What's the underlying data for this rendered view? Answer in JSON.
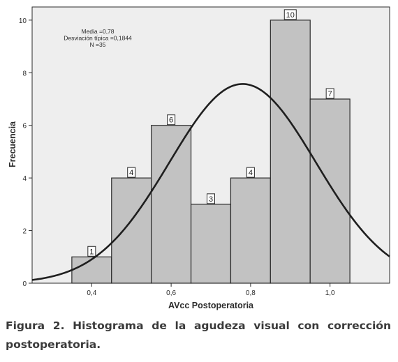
{
  "chart_data": {
    "type": "bar",
    "subtype": "histogram",
    "xlabel": "AVcc Postoperatoria",
    "ylabel": "Frecuencia",
    "xlim": [
      0.25,
      1.15
    ],
    "ylim": [
      0,
      10.5
    ],
    "x_ticks": [
      0.4,
      0.6,
      0.8,
      1.0
    ],
    "x_tick_labels": [
      "0,4",
      "0,6",
      "0,8",
      "1,0"
    ],
    "y_ticks": [
      0,
      2,
      4,
      6,
      8,
      10
    ],
    "y_tick_labels": [
      "0",
      "2",
      "4",
      "6",
      "8",
      "10"
    ],
    "bins": [
      {
        "from": 0.35,
        "to": 0.45,
        "count": 1
      },
      {
        "from": 0.45,
        "to": 0.55,
        "count": 4
      },
      {
        "from": 0.55,
        "to": 0.65,
        "count": 6
      },
      {
        "from": 0.65,
        "to": 0.75,
        "count": 3
      },
      {
        "from": 0.75,
        "to": 0.85,
        "count": 4
      },
      {
        "from": 0.85,
        "to": 0.95,
        "count": 10
      },
      {
        "from": 0.95,
        "to": 1.05,
        "count": 7
      }
    ],
    "normal_curve": {
      "mean": 0.78,
      "sd": 0.1844,
      "n": 35,
      "bin_width": 0.1
    },
    "stats_text": [
      "Media =0,78",
      "Desviación típica =0,1844",
      "N =35"
    ],
    "grid": false,
    "colors": {
      "bar_fill": "#c2c2c2",
      "bar_edge": "#2b2b2b",
      "plot_bg": "#eeeeee",
      "curve": "#1f1f1f"
    }
  },
  "caption": {
    "text": "Figura 2. Histograma de la agudeza visual con corrección postoperatoria."
  }
}
